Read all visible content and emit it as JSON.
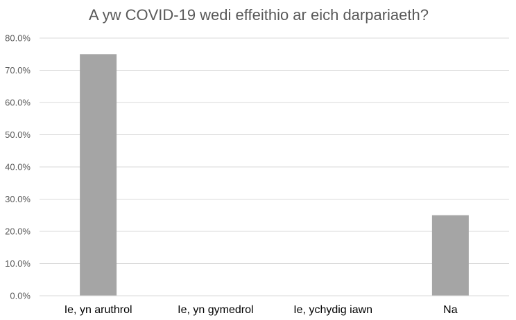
{
  "chart_data": {
    "type": "bar",
    "title": "A yw COVID-19 wedi effeithio ar eich darpariaeth?",
    "categories": [
      "Ie, yn aruthrol",
      "Ie, yn gymedrol",
      "Ie, ychydig iawn",
      "Na"
    ],
    "values": [
      75.0,
      0.0,
      0.0,
      25.0
    ],
    "ylim": [
      0,
      80
    ],
    "yticks": [
      "0.0%",
      "10.0%",
      "20.0%",
      "30.0%",
      "40.0%",
      "50.0%",
      "60.0%",
      "70.0%",
      "80.0%"
    ],
    "grid": true,
    "legend": "none",
    "bar_color": "#a5a5a5"
  }
}
